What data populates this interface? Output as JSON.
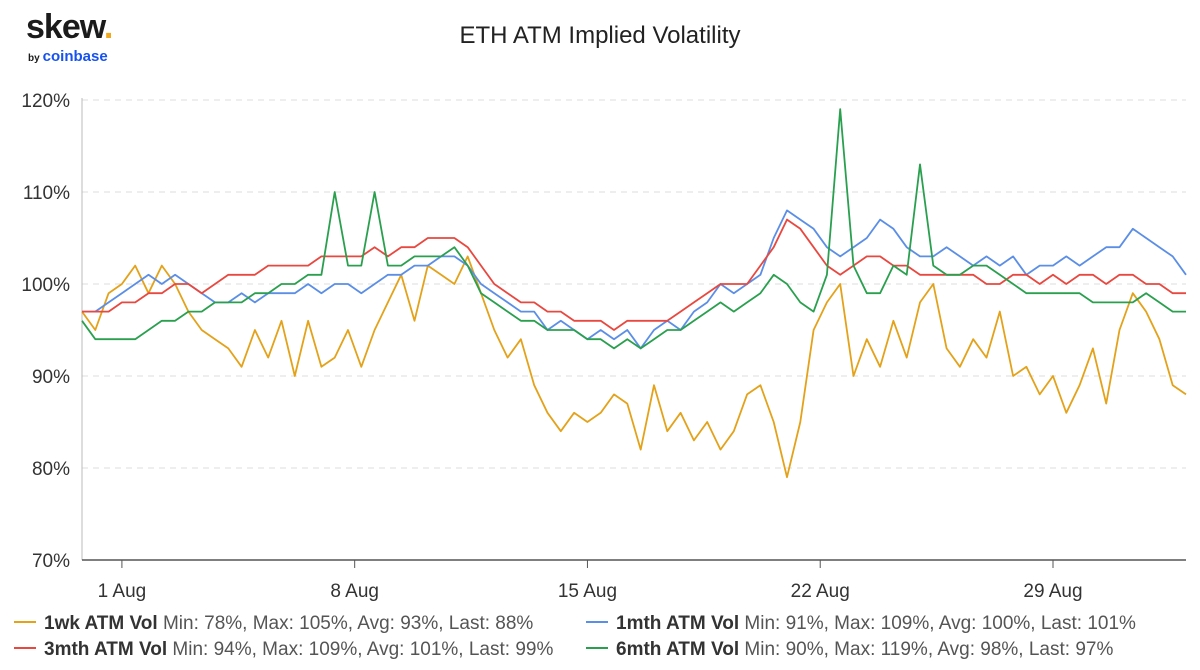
{
  "logo": {
    "main": "skew",
    "dot": ".",
    "by": "by",
    "brand": "coinbase"
  },
  "chart_data": {
    "type": "line",
    "title": "ETH ATM Implied Volatility",
    "xlabel": "",
    "ylabel": "",
    "x_unit": "days since 1 Aug",
    "xlim": [
      -1.2,
      32.0
    ],
    "ylim": [
      70,
      120
    ],
    "y_ticks": [
      70,
      80,
      90,
      100,
      110,
      120
    ],
    "y_tick_labels": [
      "70%",
      "80%",
      "90%",
      "100%",
      "110%",
      "120%"
    ],
    "x_ticks": [
      0,
      7,
      14,
      21,
      28
    ],
    "x_tick_labels": [
      "1 Aug",
      "8 Aug",
      "15 Aug",
      "22 Aug",
      "29 Aug"
    ],
    "grid": "horizontal dashed",
    "legend_position": "bottom",
    "series": [
      {
        "name": "1wk ATM Vol",
        "color": "#e3a21a",
        "stats": "Min: 78%, Max: 105%, Avg: 93%, Last: 88%",
        "x": [
          -1.2,
          -0.8,
          -0.4,
          0,
          0.4,
          0.8,
          1.2,
          1.6,
          2,
          2.4,
          2.8,
          3.2,
          3.6,
          4,
          4.4,
          4.8,
          5.2,
          5.6,
          6,
          6.4,
          6.8,
          7.2,
          7.6,
          8,
          8.4,
          8.8,
          9.2,
          9.6,
          10,
          10.4,
          10.8,
          11.2,
          11.6,
          12,
          12.4,
          12.8,
          13.2,
          13.6,
          14,
          14.4,
          14.8,
          15.2,
          15.6,
          16,
          16.4,
          16.8,
          17.2,
          17.6,
          18,
          18.4,
          18.8,
          19.2,
          19.6,
          20,
          20.4,
          20.8,
          21.2,
          21.6,
          22,
          22.4,
          22.8,
          23.2,
          23.6,
          24,
          24.4,
          24.8,
          25.2,
          25.6,
          26,
          26.4,
          26.8,
          27.2,
          27.6,
          28,
          28.4,
          28.8,
          29.2,
          29.6,
          30,
          30.4,
          30.8,
          31.2,
          31.6,
          32
        ],
        "values": [
          97,
          95,
          99,
          100,
          102,
          99,
          102,
          100,
          97,
          95,
          94,
          93,
          91,
          95,
          92,
          96,
          90,
          96,
          91,
          92,
          95,
          91,
          95,
          98,
          101,
          96,
          102,
          101,
          100,
          103,
          99,
          95,
          92,
          94,
          89,
          86,
          84,
          86,
          85,
          86,
          88,
          87,
          82,
          89,
          84,
          86,
          83,
          85,
          82,
          84,
          88,
          89,
          85,
          79,
          85,
          95,
          98,
          100,
          90,
          94,
          91,
          96,
          92,
          98,
          100,
          93,
          91,
          94,
          92,
          97,
          90,
          91,
          88,
          90,
          86,
          89,
          93,
          87,
          95,
          99,
          97,
          94,
          89,
          88
        ]
      },
      {
        "name": "1mth ATM Vol",
        "color": "#5b8ee6",
        "stats": "Min: 91%, Max: 109%, Avg: 100%, Last: 101%",
        "x": [
          -1.2,
          -0.8,
          -0.4,
          0,
          0.4,
          0.8,
          1.2,
          1.6,
          2,
          2.4,
          2.8,
          3.2,
          3.6,
          4,
          4.4,
          4.8,
          5.2,
          5.6,
          6,
          6.4,
          6.8,
          7.2,
          7.6,
          8,
          8.4,
          8.8,
          9.2,
          9.6,
          10,
          10.4,
          10.8,
          11.2,
          11.6,
          12,
          12.4,
          12.8,
          13.2,
          13.6,
          14,
          14.4,
          14.8,
          15.2,
          15.6,
          16,
          16.4,
          16.8,
          17.2,
          17.6,
          18,
          18.4,
          18.8,
          19.2,
          19.6,
          20,
          20.4,
          20.8,
          21.2,
          21.6,
          22,
          22.4,
          22.8,
          23.2,
          23.6,
          24,
          24.4,
          24.8,
          25.2,
          25.6,
          26,
          26.4,
          26.8,
          27.2,
          27.6,
          28,
          28.4,
          28.8,
          29.2,
          29.6,
          30,
          30.4,
          30.8,
          31.2,
          31.6,
          32
        ],
        "values": [
          97,
          97,
          98,
          99,
          100,
          101,
          100,
          101,
          100,
          99,
          98,
          98,
          99,
          98,
          99,
          99,
          99,
          100,
          99,
          100,
          100,
          99,
          100,
          101,
          101,
          102,
          102,
          103,
          103,
          102,
          100,
          99,
          98,
          97,
          97,
          95,
          96,
          95,
          94,
          95,
          94,
          95,
          93,
          95,
          96,
          95,
          97,
          98,
          100,
          99,
          100,
          101,
          105,
          108,
          107,
          106,
          104,
          103,
          104,
          105,
          107,
          106,
          104,
          103,
          103,
          104,
          103,
          102,
          103,
          102,
          103,
          101,
          102,
          102,
          103,
          102,
          103,
          104,
          104,
          106,
          105,
          104,
          103,
          101
        ]
      },
      {
        "name": "3mth ATM Vol",
        "color": "#e8483f",
        "stats": "Min: 94%, Max: 109%, Avg: 101%, Last: 99%",
        "x": [
          -1.2,
          -0.8,
          -0.4,
          0,
          0.4,
          0.8,
          1.2,
          1.6,
          2,
          2.4,
          2.8,
          3.2,
          3.6,
          4,
          4.4,
          4.8,
          5.2,
          5.6,
          6,
          6.4,
          6.8,
          7.2,
          7.6,
          8,
          8.4,
          8.8,
          9.2,
          9.6,
          10,
          10.4,
          10.8,
          11.2,
          11.6,
          12,
          12.4,
          12.8,
          13.2,
          13.6,
          14,
          14.4,
          14.8,
          15.2,
          15.6,
          16,
          16.4,
          16.8,
          17.2,
          17.6,
          18,
          18.4,
          18.8,
          19.2,
          19.6,
          20,
          20.4,
          20.8,
          21.2,
          21.6,
          22,
          22.4,
          22.8,
          23.2,
          23.6,
          24,
          24.4,
          24.8,
          25.2,
          25.6,
          26,
          26.4,
          26.8,
          27.2,
          27.6,
          28,
          28.4,
          28.8,
          29.2,
          29.6,
          30,
          30.4,
          30.8,
          31.2,
          31.6,
          32
        ],
        "values": [
          97,
          97,
          97,
          98,
          98,
          99,
          99,
          100,
          100,
          99,
          100,
          101,
          101,
          101,
          102,
          102,
          102,
          102,
          103,
          103,
          103,
          103,
          104,
          103,
          104,
          104,
          105,
          105,
          105,
          104,
          102,
          100,
          99,
          98,
          98,
          97,
          97,
          96,
          96,
          96,
          95,
          96,
          96,
          96,
          96,
          97,
          98,
          99,
          100,
          100,
          100,
          102,
          104,
          107,
          106,
          104,
          102,
          101,
          102,
          103,
          103,
          102,
          102,
          101,
          101,
          101,
          101,
          101,
          100,
          100,
          101,
          101,
          100,
          101,
          100,
          101,
          101,
          100,
          101,
          101,
          100,
          100,
          99,
          99
        ]
      },
      {
        "name": "6mth ATM Vol",
        "color": "#2aa04f",
        "stats": "Min: 90%, Max: 119%, Avg: 98%, Last: 97%",
        "x": [
          -1.2,
          -0.8,
          -0.4,
          0,
          0.4,
          0.8,
          1.2,
          1.6,
          2,
          2.4,
          2.8,
          3.2,
          3.6,
          4,
          4.4,
          4.8,
          5.2,
          5.6,
          6,
          6.4,
          6.8,
          7.2,
          7.6,
          8,
          8.4,
          8.8,
          9.2,
          9.6,
          10,
          10.4,
          10.8,
          11.2,
          11.6,
          12,
          12.4,
          12.8,
          13.2,
          13.6,
          14,
          14.4,
          14.8,
          15.2,
          15.6,
          16,
          16.4,
          16.8,
          17.2,
          17.6,
          18,
          18.4,
          18.8,
          19.2,
          19.6,
          20,
          20.4,
          20.8,
          21.2,
          21.6,
          22,
          22.4,
          22.8,
          23.2,
          23.6,
          24,
          24.4,
          24.8,
          25.2,
          25.6,
          26,
          26.4,
          26.8,
          27.2,
          27.6,
          28,
          28.4,
          28.8,
          29.2,
          29.6,
          30,
          30.4,
          30.8,
          31.2,
          31.6,
          32
        ],
        "values": [
          96,
          94,
          94,
          94,
          94,
          95,
          96,
          96,
          97,
          97,
          98,
          98,
          98,
          99,
          99,
          100,
          100,
          101,
          101,
          110,
          102,
          102,
          110,
          102,
          102,
          103,
          103,
          103,
          104,
          102,
          99,
          98,
          97,
          96,
          96,
          95,
          95,
          95,
          94,
          94,
          93,
          94,
          93,
          94,
          95,
          95,
          96,
          97,
          98,
          97,
          98,
          99,
          101,
          100,
          98,
          97,
          101,
          119,
          102,
          99,
          99,
          102,
          101,
          113,
          102,
          101,
          101,
          102,
          102,
          101,
          100,
          99,
          99,
          99,
          99,
          99,
          98,
          98,
          98,
          98,
          99,
          98,
          97,
          97
        ]
      }
    ]
  }
}
